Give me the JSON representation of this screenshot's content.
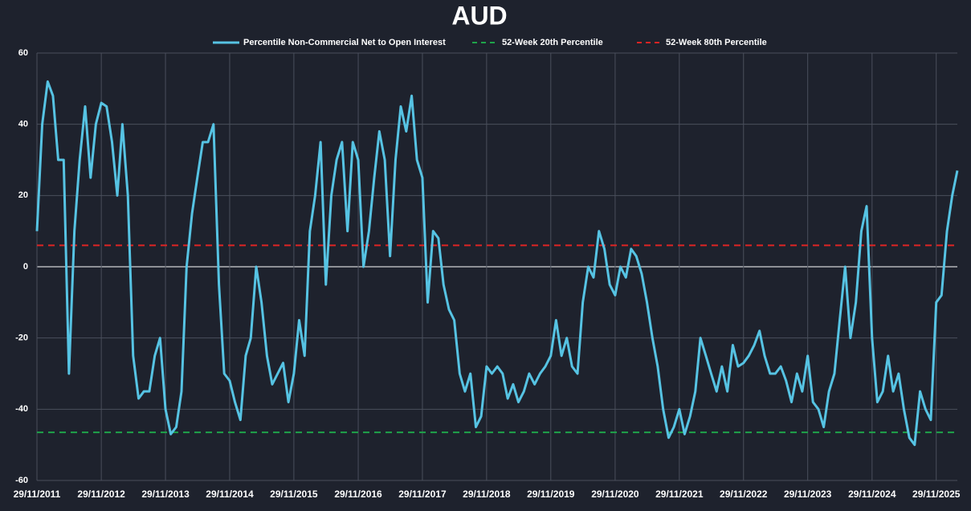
{
  "chart_data": {
    "type": "line",
    "title": "AUD",
    "x": [
      "29/11/2011",
      "29/12/2011",
      "29/01/2012",
      "28/02/2012",
      "29/03/2012",
      "29/04/2012",
      "29/05/2012",
      "29/06/2012",
      "29/07/2012",
      "29/08/2012",
      "29/09/2012",
      "29/10/2012",
      "29/11/2012",
      "29/12/2012",
      "29/01/2013",
      "28/02/2013",
      "29/03/2013",
      "29/04/2013",
      "29/05/2013",
      "29/06/2013",
      "29/07/2013",
      "29/08/2013",
      "29/09/2013",
      "29/10/2013",
      "29/11/2013",
      "29/12/2013",
      "29/01/2014",
      "28/02/2014",
      "29/03/2014",
      "29/04/2014",
      "29/05/2014",
      "29/06/2014",
      "29/07/2014",
      "29/08/2014",
      "29/09/2014",
      "29/10/2014",
      "29/11/2014",
      "29/12/2014",
      "29/01/2015",
      "28/02/2015",
      "29/03/2015",
      "29/04/2015",
      "29/05/2015",
      "29/06/2015",
      "29/07/2015",
      "29/08/2015",
      "29/09/2015",
      "29/10/2015",
      "29/11/2015",
      "29/12/2015",
      "29/01/2016",
      "28/02/2016",
      "29/03/2016",
      "29/04/2016",
      "29/05/2016",
      "29/06/2016",
      "29/07/2016",
      "29/08/2016",
      "29/09/2016",
      "29/10/2016",
      "29/11/2016",
      "29/12/2016",
      "29/01/2017",
      "28/02/2017",
      "29/03/2017",
      "29/04/2017",
      "29/05/2017",
      "29/06/2017",
      "29/07/2017",
      "29/08/2017",
      "29/09/2017",
      "29/10/2017",
      "29/11/2017",
      "29/12/2017",
      "29/01/2018",
      "28/02/2018",
      "29/03/2018",
      "29/04/2018",
      "29/05/2018",
      "29/06/2018",
      "29/07/2018",
      "29/08/2018",
      "29/09/2018",
      "29/10/2018",
      "29/11/2018",
      "29/12/2018",
      "29/01/2019",
      "28/02/2019",
      "29/03/2019",
      "29/04/2019",
      "29/05/2019",
      "29/06/2019",
      "29/07/2019",
      "29/08/2019",
      "29/09/2019",
      "29/10/2019",
      "29/11/2019",
      "29/12/2019",
      "29/01/2020",
      "28/02/2020",
      "29/03/2020",
      "29/04/2020",
      "29/05/2020",
      "29/06/2020",
      "29/07/2020",
      "29/08/2020",
      "29/09/2020",
      "29/10/2020",
      "29/11/2020",
      "29/12/2020",
      "29/01/2021",
      "28/02/2021",
      "29/03/2021",
      "29/04/2021",
      "29/05/2021",
      "29/06/2021",
      "29/07/2021",
      "29/08/2021",
      "29/09/2021",
      "29/10/2021",
      "29/11/2021",
      "29/12/2021",
      "29/01/2022",
      "28/02/2022",
      "29/03/2022",
      "29/04/2022",
      "29/05/2022",
      "29/06/2022",
      "29/07/2022",
      "29/08/2022",
      "29/09/2022",
      "29/10/2022",
      "29/11/2022",
      "29/12/2022",
      "29/01/2023",
      "28/02/2023",
      "29/03/2023",
      "29/04/2023",
      "29/05/2023",
      "29/06/2023",
      "29/07/2023",
      "29/08/2023",
      "29/09/2023",
      "29/10/2023",
      "29/11/2023",
      "29/12/2023",
      "29/01/2024",
      "28/02/2024",
      "29/03/2024",
      "29/04/2024",
      "29/05/2024",
      "29/06/2024",
      "29/07/2024",
      "29/08/2024",
      "29/09/2024",
      "29/10/2024",
      "29/11/2024",
      "29/12/2024",
      "29/01/2025",
      "28/02/2025",
      "29/03/2025",
      "29/04/2025",
      "29/05/2025",
      "29/06/2025",
      "29/07/2025",
      "29/08/2025",
      "29/09/2025",
      "29/10/2025",
      "29/11/2025",
      "29/12/2025",
      "29/01/2026",
      "28/02/2026",
      "29/03/2026"
    ],
    "series": [
      {
        "name": "Percentile Non-Commercial Net to Open Interest",
        "color": "#56c3e3",
        "values": [
          10,
          40,
          52,
          48,
          30,
          30,
          -30,
          10,
          30,
          45,
          25,
          40,
          46,
          45,
          35,
          20,
          40,
          20,
          -25,
          -37,
          -35,
          -35,
          -25,
          -20,
          -40,
          -47,
          -45,
          -35,
          0,
          15,
          25,
          35,
          35,
          40,
          -5,
          -30,
          -32,
          -38,
          -43,
          -25,
          -20,
          0,
          -10,
          -25,
          -33,
          -30,
          -27,
          -38,
          -30,
          -15,
          -25,
          10,
          20,
          35,
          -5,
          20,
          30,
          35,
          10,
          35,
          30,
          0,
          10,
          25,
          38,
          30,
          3,
          30,
          45,
          38,
          48,
          30,
          25,
          -10,
          10,
          8,
          -5,
          -12,
          -15,
          -30,
          -35,
          -30,
          -45,
          -42,
          -28,
          -30,
          -28,
          -30,
          -37,
          -33,
          -38,
          -35,
          -30,
          -33,
          -30,
          -28,
          -25,
          -15,
          -25,
          -20,
          -28,
          -30,
          -10,
          0,
          -3,
          10,
          5,
          -5,
          -8,
          0,
          -3,
          5,
          3,
          -2,
          -10,
          -20,
          -28,
          -40,
          -48,
          -45,
          -40,
          -47,
          -42,
          -35,
          -20,
          -25,
          -30,
          -35,
          -28,
          -35,
          -22,
          -28,
          -27,
          -25,
          -22,
          -18,
          -25,
          -30,
          -30,
          -28,
          -32,
          -38,
          -30,
          -35,
          -25,
          -38,
          -40,
          -45,
          -35,
          -30,
          -15,
          0,
          -20,
          -10,
          10,
          17,
          -20,
          -38,
          -35,
          -25,
          -35,
          -30,
          -40,
          -48,
          -50,
          -35,
          -40,
          -43,
          -10,
          -8,
          10,
          20,
          27
        ]
      }
    ],
    "reference_lines": [
      {
        "name": "52-Week 20th Percentile",
        "value": -46.5,
        "color": "#1fa34a"
      },
      {
        "name": "52-Week 80th Percentile",
        "value": 6,
        "color": "#e02424"
      }
    ],
    "xlim": [
      "29/11/2011",
      "29/03/2026"
    ],
    "xticks": [
      "29/11/2011",
      "29/11/2012",
      "29/11/2013",
      "29/11/2014",
      "29/11/2015",
      "29/11/2016",
      "29/11/2017",
      "29/11/2018",
      "29/11/2019",
      "29/11/2020",
      "29/11/2021",
      "29/11/2022",
      "29/11/2023",
      "29/11/2024",
      "29/11/2025"
    ],
    "ylim": [
      -60,
      60
    ],
    "yticks": [
      -60,
      -40,
      -20,
      0,
      20,
      40,
      60
    ],
    "grid": true
  }
}
